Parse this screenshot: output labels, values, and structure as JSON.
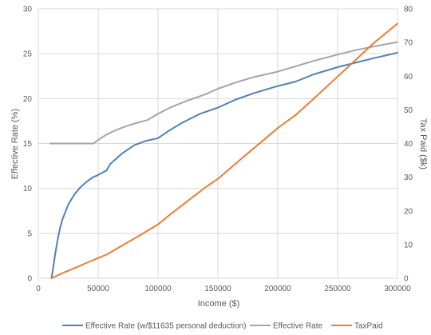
{
  "chart_data": {
    "type": "line",
    "title": "",
    "xlabel": "Income ($)",
    "ylabel_left": "Effective Rate (%)",
    "ylabel_right": "Tax Paid ($k)",
    "xlim": [
      0,
      300000
    ],
    "ylim_left": [
      0,
      30
    ],
    "ylim_right": [
      0,
      80
    ],
    "x_ticks": [
      0,
      50000,
      100000,
      150000,
      200000,
      250000,
      300000
    ],
    "y_left_ticks": [
      0,
      5,
      10,
      15,
      20,
      25,
      30
    ],
    "y_right_ticks": [
      0,
      10,
      20,
      30,
      40,
      50,
      60,
      70,
      80
    ],
    "grid": true,
    "legend_position": "bottom",
    "series": [
      {
        "name": "Effective Rate (w/$11635 personal deduction)",
        "axis": "left",
        "color": "#4f81bd",
        "points": [
          [
            11000,
            0
          ],
          [
            12000,
            0.8
          ],
          [
            14000,
            2.6
          ],
          [
            16000,
            4.2
          ],
          [
            18000,
            5.5
          ],
          [
            20000,
            6.5
          ],
          [
            25000,
            8.2
          ],
          [
            30000,
            9.3
          ],
          [
            35000,
            10.1
          ],
          [
            40000,
            10.7
          ],
          [
            45000,
            11.2
          ],
          [
            50000,
            11.5
          ],
          [
            57000,
            12.0
          ],
          [
            60000,
            12.7
          ],
          [
            70000,
            13.9
          ],
          [
            80000,
            14.8
          ],
          [
            90000,
            15.3
          ],
          [
            100000,
            15.6
          ],
          [
            110000,
            16.5
          ],
          [
            120000,
            17.3
          ],
          [
            135000,
            18.3
          ],
          [
            150000,
            19.0
          ],
          [
            165000,
            19.9
          ],
          [
            180000,
            20.6
          ],
          [
            200000,
            21.4
          ],
          [
            215000,
            21.9
          ],
          [
            230000,
            22.7
          ],
          [
            250000,
            23.5
          ],
          [
            265000,
            24.0
          ],
          [
            280000,
            24.5
          ],
          [
            300000,
            25.1
          ]
        ]
      },
      {
        "name": "Effective Rate",
        "axis": "left",
        "color": "#a5a5a5",
        "points": [
          [
            10000,
            15.0
          ],
          [
            20000,
            15.0
          ],
          [
            30000,
            15.0
          ],
          [
            40000,
            15.0
          ],
          [
            46000,
            15.0
          ],
          [
            50000,
            15.4
          ],
          [
            57000,
            16.0
          ],
          [
            65000,
            16.5
          ],
          [
            75000,
            17.0
          ],
          [
            85000,
            17.4
          ],
          [
            91000,
            17.6
          ],
          [
            100000,
            18.3
          ],
          [
            110000,
            19.0
          ],
          [
            125000,
            19.8
          ],
          [
            140000,
            20.5
          ],
          [
            150000,
            21.1
          ],
          [
            165000,
            21.8
          ],
          [
            180000,
            22.4
          ],
          [
            200000,
            23.0
          ],
          [
            215000,
            23.6
          ],
          [
            230000,
            24.2
          ],
          [
            250000,
            24.9
          ],
          [
            265000,
            25.4
          ],
          [
            280000,
            25.8
          ],
          [
            300000,
            26.3
          ]
        ]
      },
      {
        "name": "TaxPaid",
        "axis": "right",
        "color": "#ed7d31",
        "points": [
          [
            11000,
            0
          ],
          [
            20000,
            1.5
          ],
          [
            30000,
            3.0
          ],
          [
            40000,
            4.5
          ],
          [
            50000,
            6.0
          ],
          [
            57000,
            7.0
          ],
          [
            70000,
            9.7
          ],
          [
            85000,
            12.8
          ],
          [
            100000,
            16.0
          ],
          [
            110000,
            18.9
          ],
          [
            125000,
            23.0
          ],
          [
            140000,
            27.1
          ],
          [
            150000,
            29.5
          ],
          [
            170000,
            35.6
          ],
          [
            190000,
            41.6
          ],
          [
            200000,
            44.6
          ],
          [
            215000,
            48.5
          ],
          [
            230000,
            53.3
          ],
          [
            250000,
            59.9
          ],
          [
            265000,
            64.8
          ],
          [
            280000,
            69.8
          ],
          [
            300000,
            75.6
          ]
        ]
      }
    ]
  }
}
